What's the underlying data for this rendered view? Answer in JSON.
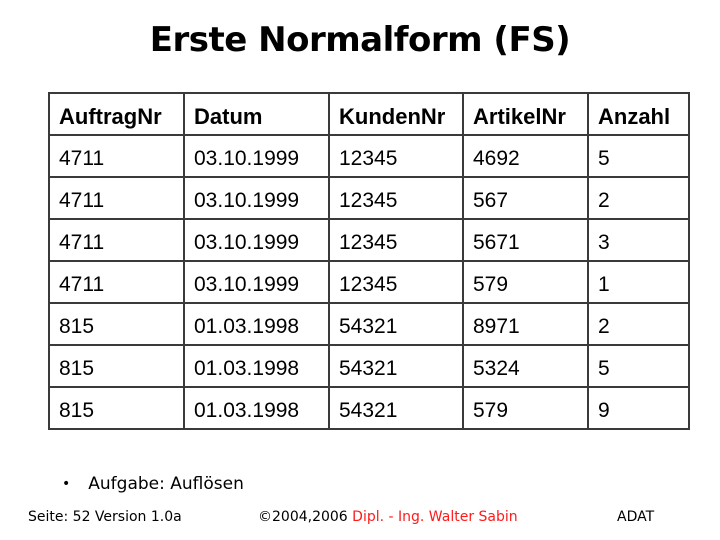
{
  "slide": {
    "title": "Erste Normalform (FS)"
  },
  "table": {
    "columns": [
      "AuftragNr",
      "Datum",
      "KundenNr",
      "ArtikelNr",
      "Anzahl"
    ],
    "rows": [
      [
        "4711",
        "03.10.1999",
        "12345",
        "4692",
        "5"
      ],
      [
        "4711",
        "03.10.1999",
        "12345",
        "567",
        "2"
      ],
      [
        "4711",
        "03.10.1999",
        "12345",
        "5671",
        "3"
      ],
      [
        "4711",
        "03.10.1999",
        "12345",
        "579",
        "1"
      ],
      [
        "815",
        "01.03.1998",
        "54321",
        "8971",
        "2"
      ],
      [
        "815",
        "01.03.1998",
        "54321",
        "5324",
        "5"
      ],
      [
        "815",
        "01.03.1998",
        "54321",
        "579",
        "9"
      ]
    ]
  },
  "bullet": {
    "marker": "•",
    "text": "Aufgabe: Auflösen"
  },
  "footer": {
    "page_info": "Seite: 52 Version 1.0a",
    "copyright": "©2004,2006",
    "author": "Dipl. - Ing. Walter Sabin",
    "course": "ADAT"
  },
  "colors": {
    "text": "#000000",
    "background": "#ffffff",
    "table_border": "#3a3a3a",
    "author_red": "#ff1a1a"
  }
}
